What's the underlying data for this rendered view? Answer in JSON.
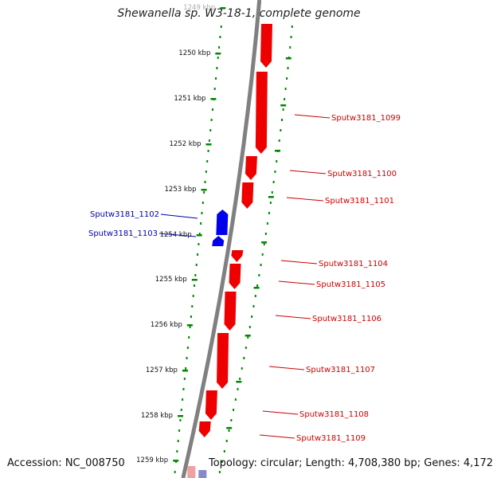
{
  "title": "Shewanella sp. W3-18-1, complete genome",
  "accession": "Accession: NC_008750",
  "topology": "Topology: circular; Length: 4,708,380 bp; Genes: 4,172",
  "colors": {
    "forward_gene": "#ee0000",
    "reverse_gene": "#0000ee",
    "forward_label": "#cc0000",
    "reverse_label": "#0000aa",
    "backbone": "#808080",
    "ruler": "#008800"
  },
  "ruler_ticks": [
    "1249 kbp",
    "1250 kbp",
    "1251 kbp",
    "1252 kbp",
    "1253 kbp",
    "1254 kbp",
    "1255 kbp",
    "1256 kbp",
    "1257 kbp",
    "1258 kbp",
    "1259 kbp"
  ],
  "genes": [
    {
      "label": "Sputw3181_1099",
      "strand": "forward"
    },
    {
      "label": "Sputw3181_1100",
      "strand": "forward"
    },
    {
      "label": "Sputw3181_1101",
      "strand": "forward"
    },
    {
      "label": "Sputw3181_1102",
      "strand": "reverse"
    },
    {
      "label": "Sputw3181_1103",
      "strand": "reverse"
    },
    {
      "label": "Sputw3181_1104",
      "strand": "forward"
    },
    {
      "label": "Sputw3181_1105",
      "strand": "forward"
    },
    {
      "label": "Sputw3181_1106",
      "strand": "forward"
    },
    {
      "label": "Sputw3181_1107",
      "strand": "forward"
    },
    {
      "label": "Sputw3181_1108",
      "strand": "forward"
    },
    {
      "label": "Sputw3181_1109",
      "strand": "forward"
    }
  ]
}
